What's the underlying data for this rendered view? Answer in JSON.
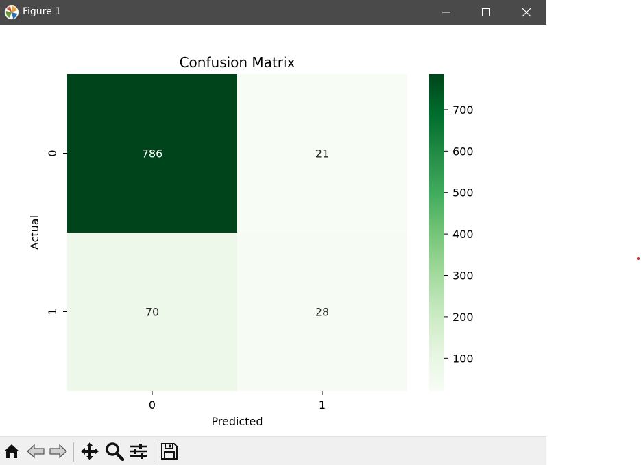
{
  "window": {
    "title": "Figure 1",
    "icons": {
      "app": "matplotlib-icon",
      "minimize": "minimize-icon",
      "maximize": "maximize-icon",
      "close": "close-icon"
    }
  },
  "toolbar": {
    "tools": [
      {
        "name": "home",
        "icon": "home-icon"
      },
      {
        "name": "back",
        "icon": "back-arrow-icon"
      },
      {
        "name": "forward",
        "icon": "forward-arrow-icon"
      },
      {
        "name": "pan",
        "icon": "move-icon"
      },
      {
        "name": "zoom",
        "icon": "magnifier-icon"
      },
      {
        "name": "configure",
        "icon": "sliders-icon"
      },
      {
        "name": "save",
        "icon": "floppy-disk-icon"
      }
    ]
  },
  "chart_data": {
    "type": "heatmap",
    "title": "Confusion Matrix",
    "xlabel": "Predicted",
    "ylabel": "Actual",
    "x_categories": [
      "0",
      "1"
    ],
    "y_categories": [
      "0",
      "1"
    ],
    "values": [
      [
        786,
        21
      ],
      [
        70,
        28
      ]
    ],
    "cell_labels": [
      [
        "786",
        "21"
      ],
      [
        "70",
        "28"
      ]
    ],
    "colormap": "Greens",
    "colorbar": {
      "range": [
        21,
        786
      ],
      "ticks": [
        100,
        200,
        300,
        400,
        500,
        600,
        700
      ],
      "tick_labels": [
        "100",
        "200",
        "300",
        "400",
        "500",
        "600",
        "700"
      ]
    },
    "grid": false
  }
}
